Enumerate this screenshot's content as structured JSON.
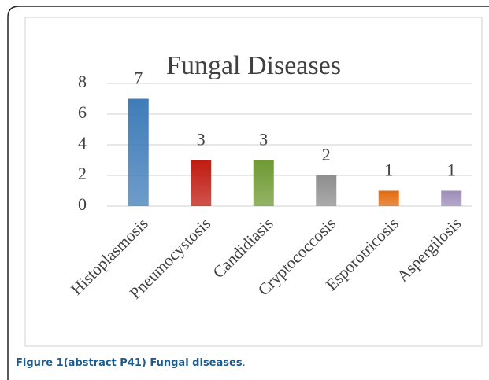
{
  "chart_data": {
    "type": "bar",
    "title": "Fungal Diseases",
    "categories": [
      "Histoplasmosis",
      "Pneumocystosis",
      "Candidiasis",
      "Cryptococcosis",
      "Esporotricosis",
      "Aspergilosis"
    ],
    "values": [
      7,
      3,
      3,
      2,
      1,
      1
    ],
    "colors": [
      "#3f7cb8",
      "#c01a10",
      "#6e9a33",
      "#8e8e8e",
      "#e26a0c",
      "#9d8cb8"
    ],
    "ylim": [
      0,
      8
    ],
    "yticks": [
      0,
      2,
      4,
      6,
      8
    ],
    "grid": true
  },
  "caption": "Figure 1(abstract P41) Fungal diseases",
  "caption_end": "."
}
